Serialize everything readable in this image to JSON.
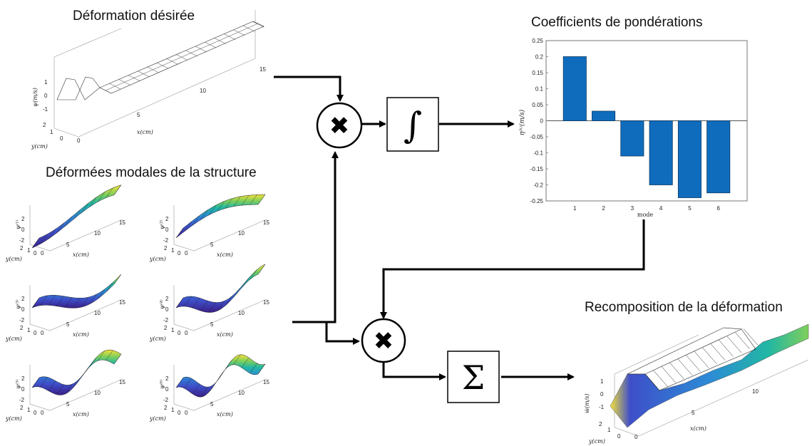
{
  "titles": {
    "desired": "Déformation désirée",
    "modal": "Déformées modales de la structure",
    "coeffs": "Coefficients de pondérations",
    "recomposition": "Recomposition de la déformation"
  },
  "operators": {
    "multiply_symbol": "✖",
    "integral_symbol": "∫",
    "sum_symbol": "Σ"
  },
  "surface_plots": {
    "desired": {
      "zlabel": "ψ(m/s)",
      "xlabel": "x(cm)",
      "ylabel": "y(cm)",
      "xticks": [
        "5",
        "10",
        "15"
      ],
      "yticks": [
        "0",
        "1",
        "2"
      ],
      "xzero": "0",
      "zticks": [
        "1",
        "0",
        "-1"
      ]
    },
    "modes": [
      {
        "zlabel": "ψ⁽¹⁾",
        "xlabel": "x(cm)",
        "ylabel": "y(cm)",
        "xticks": [
          "5",
          "10",
          "15"
        ],
        "yticks": [
          "0",
          "1",
          "2"
        ],
        "xzero": "0",
        "zticks": [
          "2",
          "0",
          "-2"
        ]
      },
      {
        "zlabel": "ψ⁽²⁾",
        "xlabel": "x(cm)",
        "ylabel": "y(cm)",
        "xticks": [
          "5",
          "10",
          "15"
        ],
        "yticks": [
          "0",
          "1",
          "2"
        ],
        "xzero": "0",
        "zticks": [
          "2",
          "0",
          "-2"
        ]
      },
      {
        "zlabel": "ψ⁽³⁾",
        "xlabel": "x(cm)",
        "ylabel": "y(cm)",
        "xticks": [
          "5",
          "10",
          "15"
        ],
        "yticks": [
          "0",
          "1",
          "2"
        ],
        "xzero": "0",
        "zticks": [
          "2",
          "0",
          "-2"
        ]
      },
      {
        "zlabel": "ψ⁽⁴⁾",
        "xlabel": "x(cm)",
        "ylabel": "y(cm)",
        "xticks": [
          "5",
          "10",
          "15"
        ],
        "yticks": [
          "0",
          "1",
          "2"
        ],
        "xzero": "0",
        "zticks": [
          "2",
          "0",
          "-2"
        ]
      },
      {
        "zlabel": "ψ⁽⁵⁾",
        "xlabel": "x(cm)",
        "ylabel": "y(cm)",
        "xticks": [
          "5",
          "10",
          "15"
        ],
        "yticks": [
          "0",
          "1",
          "2"
        ],
        "xzero": "0",
        "zticks": [
          "2",
          "0",
          "-2"
        ]
      },
      {
        "zlabel": "ψ⁽⁶⁾",
        "xlabel": "x(cm)",
        "ylabel": "y(cm)",
        "xticks": [
          "5",
          "10",
          "15"
        ],
        "yticks": [
          "0",
          "1",
          "2"
        ],
        "xzero": "0",
        "zticks": [
          "2",
          "0",
          "-2"
        ]
      }
    ],
    "recomposition": {
      "zlabel": "ẇ(m/s)",
      "xlabel": "x(cm)",
      "ylabel": "y(cm)",
      "xticks": [
        "5",
        "10"
      ],
      "yticks": [
        "0",
        "1",
        "2"
      ],
      "xzero": "0",
      "zticks": [
        "1",
        "0",
        "-1"
      ]
    }
  },
  "chart_data": {
    "type": "bar",
    "categories": [
      "1",
      "2",
      "3",
      "4",
      "5",
      "6"
    ],
    "values": [
      0.2,
      0.03,
      -0.11,
      -0.2,
      -0.24,
      -0.225
    ],
    "title": "",
    "xlabel": "mode",
    "ylabel": "η⁽ᵏ⁾(m/s)",
    "ylim": [
      -0.25,
      0.25
    ],
    "yticks": [
      "0.25",
      "0.2",
      "0.15",
      "0.1",
      "0.05",
      "0",
      "-0.05",
      "-0.1",
      "-0.15",
      "-0.2",
      "-0.25"
    ],
    "bar_color": "#0f6cbd"
  },
  "colors": {
    "bar": "#0f6cbd",
    "arrow": "#000000",
    "colormap": [
      "#3b1f8a",
      "#3e4fc9",
      "#2c8bd6",
      "#22b7a3",
      "#7fcf5b",
      "#f5e13a"
    ]
  }
}
